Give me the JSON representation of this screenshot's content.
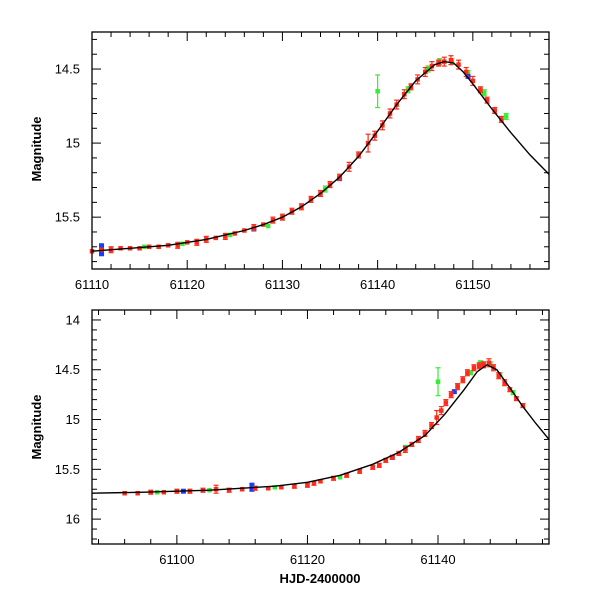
{
  "colors": {
    "frame": "#000000",
    "model": "#000000",
    "red": "#ff2a1a",
    "green": "#33ee33",
    "blue": "#1a3cff"
  },
  "chart_data": [
    {
      "type": "scatter",
      "title": "",
      "xlabel": "",
      "ylabel": "Magnitude",
      "xlim": [
        61110,
        61158
      ],
      "ylim": [
        15.85,
        14.25
      ],
      "xticks": [
        61110,
        61120,
        61130,
        61140,
        61150
      ],
      "yticks": [
        14.5,
        15,
        15.5
      ],
      "ytick_labels": [
        "14.5",
        "15",
        "15.5"
      ],
      "model_curve": {
        "x": [
          61110,
          61114,
          61118,
          61122,
          61126,
          61128,
          61130,
          61132,
          61134,
          61136,
          61138,
          61140,
          61142,
          61144,
          61146,
          61147,
          61148,
          61149,
          61150,
          61152,
          61154,
          61156,
          61158
        ],
        "y": [
          15.73,
          15.71,
          15.69,
          15.65,
          15.59,
          15.55,
          15.5,
          15.43,
          15.34,
          15.23,
          15.09,
          14.92,
          14.74,
          14.58,
          14.47,
          14.45,
          14.46,
          14.52,
          14.6,
          14.77,
          14.93,
          15.08,
          15.21
        ]
      },
      "series": [
        {
          "name": "red",
          "x": [
            61110,
            61111,
            61112,
            61113,
            61114,
            61115,
            61116,
            61117,
            61118,
            61119,
            61120,
            61121,
            61122,
            61123,
            61124,
            61125,
            61126,
            61127,
            61128,
            61129,
            61130,
            61131,
            61132,
            61133,
            61134,
            61135,
            61136,
            61137,
            61138,
            61139,
            61139.7,
            61140.5,
            61141.3,
            61142,
            61142.8,
            61143.5,
            61144.2,
            61145,
            61145.7,
            61146.4,
            61147,
            61147.7,
            61148.5,
            61149.3,
            61150,
            61150.8,
            61151.5,
            61152.3,
            61153
          ],
          "y": [
            15.73,
            15.72,
            15.72,
            15.71,
            15.71,
            15.71,
            15.7,
            15.7,
            15.69,
            15.69,
            15.67,
            15.67,
            15.65,
            15.64,
            15.63,
            15.61,
            15.59,
            15.57,
            15.55,
            15.52,
            15.5,
            15.46,
            15.43,
            15.38,
            15.34,
            15.28,
            15.23,
            15.16,
            15.08,
            15.0,
            14.95,
            14.88,
            14.8,
            14.74,
            14.67,
            14.62,
            14.57,
            14.52,
            14.48,
            14.46,
            14.45,
            14.44,
            14.47,
            14.52,
            14.58,
            14.64,
            14.71,
            14.78,
            14.84
          ],
          "err": [
            0.01,
            0.01,
            0.02,
            0.01,
            0.01,
            0.01,
            0.01,
            0.01,
            0.01,
            0.02,
            0.01,
            0.02,
            0.02,
            0.01,
            0.02,
            0.01,
            0.01,
            0.02,
            0.01,
            0.02,
            0.02,
            0.02,
            0.02,
            0.02,
            0.02,
            0.02,
            0.02,
            0.03,
            0.02,
            0.06,
            0.03,
            0.03,
            0.03,
            0.03,
            0.03,
            0.02,
            0.03,
            0.03,
            0.03,
            0.02,
            0.03,
            0.03,
            0.03,
            0.03,
            0.03,
            0.02,
            0.02,
            0.02,
            0.02
          ]
        },
        {
          "name": "green",
          "x": [
            61115.5,
            61119.5,
            61124.5,
            61128.5,
            61134.5,
            61140,
            61143.2,
            61145.3,
            61146.5,
            61147.8,
            61149.5,
            61151.2,
            61153.5
          ],
          "y": [
            15.7,
            15.68,
            15.62,
            15.56,
            15.31,
            14.65,
            14.64,
            14.5,
            14.45,
            14.45,
            14.53,
            14.66,
            14.82
          ],
          "err": [
            0.01,
            0.01,
            0.01,
            0.01,
            0.02,
            0.11,
            0.02,
            0.02,
            0.02,
            0.02,
            0.02,
            0.02,
            0.02
          ]
        },
        {
          "name": "blue",
          "x": [
            61111,
            61127,
            61136,
            61149.5
          ],
          "y": [
            15.72,
            15.58,
            15.24,
            14.55
          ],
          "err": [
            0.04,
            0.01,
            0.01,
            0.01
          ]
        }
      ]
    },
    {
      "type": "scatter",
      "title": "",
      "xlabel": "HJD-2400000",
      "ylabel": "Magnitude",
      "xlim": [
        61087,
        61157
      ],
      "ylim": [
        16.25,
        13.9
      ],
      "xticks": [
        61100,
        61120,
        61140
      ],
      "yticks": [
        14,
        14.5,
        15,
        15.5,
        16
      ],
      "ytick_labels": [
        "14",
        "14.5",
        "15",
        "15.5",
        "16"
      ],
      "model_curve": {
        "x": [
          61087,
          61095,
          61105,
          61115,
          61120,
          61125,
          61130,
          61134,
          61138,
          61141,
          61144,
          61146,
          61147.5,
          61149,
          61151,
          61153,
          61155,
          61157
        ],
        "y": [
          15.74,
          15.73,
          15.71,
          15.67,
          15.63,
          15.56,
          15.45,
          15.33,
          15.16,
          14.95,
          14.7,
          14.52,
          14.45,
          14.5,
          14.68,
          14.87,
          15.04,
          15.2
        ]
      },
      "series": [
        {
          "name": "red",
          "x": [
            61092,
            61094,
            61096,
            61098,
            61100,
            61102,
            61104,
            61106,
            61108,
            61110,
            61112,
            61114,
            61116,
            61118,
            61120,
            61121,
            61122,
            61124,
            61126,
            61128,
            61130,
            61131,
            61132,
            61133,
            61134,
            61135,
            61136,
            61137,
            61138,
            61139,
            61139.8,
            61140.5,
            61141.2,
            61142,
            61143,
            61143.8,
            61144.5,
            61145.5,
            61146.3,
            61147,
            61147.8,
            61148.5,
            61149.3,
            61150.2,
            61151,
            61152,
            61153
          ],
          "y": [
            15.74,
            15.74,
            15.73,
            15.73,
            15.72,
            15.72,
            15.71,
            15.7,
            15.71,
            15.7,
            15.69,
            15.69,
            15.68,
            15.67,
            15.66,
            15.64,
            15.62,
            15.59,
            15.56,
            15.52,
            15.48,
            15.46,
            15.41,
            15.38,
            15.34,
            15.3,
            15.25,
            15.2,
            15.14,
            15.06,
            14.98,
            14.91,
            14.83,
            14.75,
            14.67,
            14.6,
            14.53,
            14.48,
            14.46,
            14.45,
            14.43,
            14.48,
            14.56,
            14.63,
            14.7,
            14.79,
            14.86
          ],
          "err": [
            0.01,
            0.01,
            0.02,
            0.01,
            0.02,
            0.02,
            0.02,
            0.04,
            0.02,
            0.01,
            0.02,
            0.01,
            0.01,
            0.02,
            0.02,
            0.02,
            0.01,
            0.02,
            0.02,
            0.02,
            0.02,
            0.02,
            0.02,
            0.02,
            0.02,
            0.03,
            0.02,
            0.03,
            0.03,
            0.03,
            0.07,
            0.04,
            0.03,
            0.03,
            0.03,
            0.03,
            0.03,
            0.03,
            0.03,
            0.03,
            0.04,
            0.03,
            0.03,
            0.03,
            0.02,
            0.02,
            0.02
          ]
        },
        {
          "name": "green",
          "x": [
            61097,
            61105,
            61115,
            61125,
            61135,
            61140,
            61143,
            61145,
            61146.5,
            61148,
            61149.5,
            61151.5
          ],
          "y": [
            15.73,
            15.71,
            15.68,
            15.58,
            15.28,
            14.62,
            14.66,
            14.53,
            14.43,
            14.44,
            14.55,
            14.73
          ],
          "err": [
            0.01,
            0.01,
            0.01,
            0.01,
            0.02,
            0.14,
            0.02,
            0.02,
            0.02,
            0.02,
            0.02,
            0.02
          ]
        },
        {
          "name": "blue",
          "x": [
            61101,
            61111.5,
            61133,
            61142.5
          ],
          "y": [
            15.72,
            15.68,
            15.38,
            14.72
          ],
          "err": [
            0.01,
            0.04,
            0.01,
            0.01
          ]
        }
      ]
    }
  ]
}
